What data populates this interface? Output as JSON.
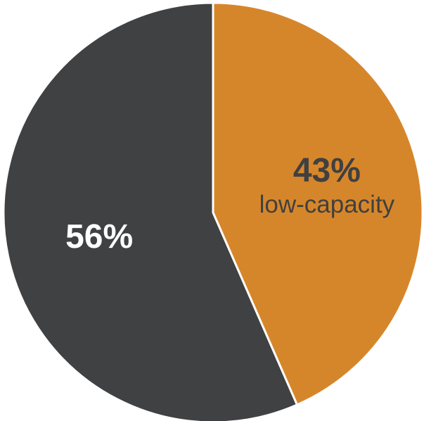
{
  "chart_data": {
    "type": "pie",
    "slices": [
      {
        "label": "low-capacity",
        "value": 43,
        "value_label": "43%",
        "color": "#D6862A",
        "text_color": "#404040"
      },
      {
        "label": "",
        "value": 56,
        "value_label": "56%",
        "color": "#404143",
        "text_color": "#ffffff"
      }
    ],
    "start_angle": "12 o'clock",
    "direction": "clockwise",
    "legend": "none",
    "title": ""
  }
}
